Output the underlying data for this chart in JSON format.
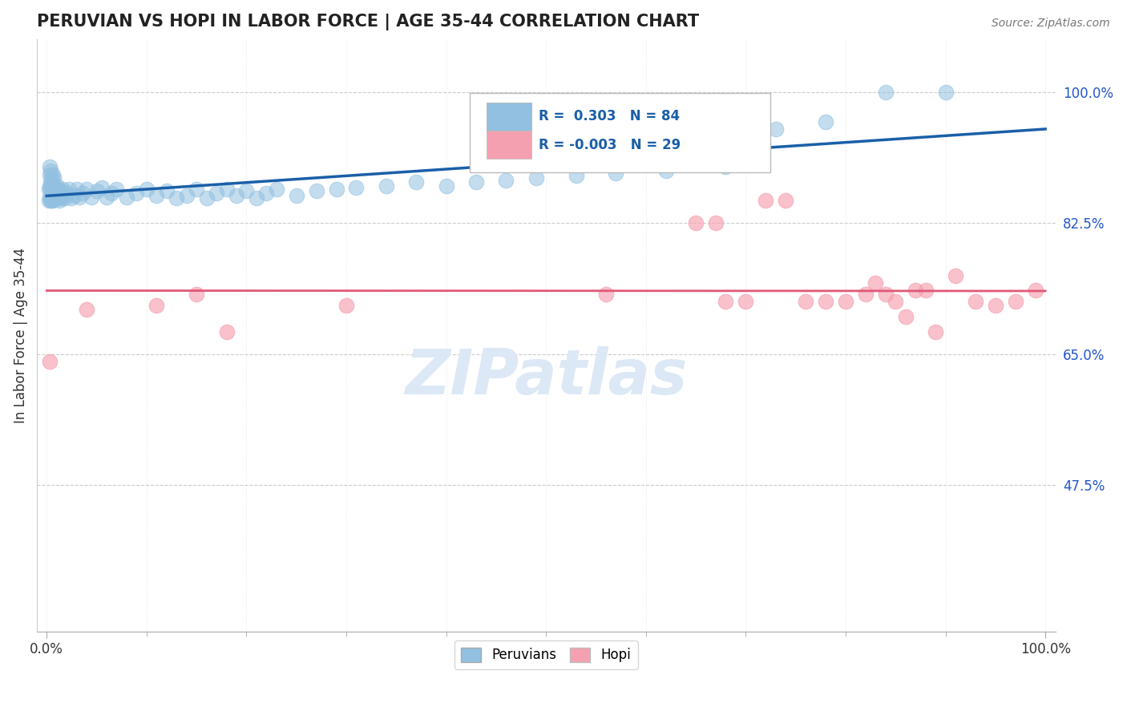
{
  "title": "PERUVIAN VS HOPI IN LABOR FORCE | AGE 35-44 CORRELATION CHART",
  "source": "Source: ZipAtlas.com",
  "ylabel": "In Labor Force | Age 35-44",
  "xlim": [
    -0.01,
    1.01
  ],
  "ylim": [
    0.28,
    1.07
  ],
  "y_ticks_right": [
    1.0,
    0.825,
    0.65,
    0.475
  ],
  "y_tick_labels_right": [
    "100.0%",
    "82.5%",
    "65.0%",
    "47.5%"
  ],
  "blue_R": 0.303,
  "blue_N": 84,
  "pink_R": -0.003,
  "pink_N": 29,
  "blue_color": "#92c0e0",
  "pink_color": "#f5a0b0",
  "blue_line_color": "#1a5fa8",
  "pink_line_color": "#e05878",
  "watermark_color": "#dce8f5",
  "peruvians_x": [
    0.002,
    0.002,
    0.003,
    0.003,
    0.003,
    0.003,
    0.004,
    0.004,
    0.004,
    0.004,
    0.005,
    0.005,
    0.005,
    0.005,
    0.006,
    0.006,
    0.006,
    0.006,
    0.007,
    0.007,
    0.007,
    0.008,
    0.008,
    0.009,
    0.009,
    0.01,
    0.01,
    0.011,
    0.011,
    0.012,
    0.013,
    0.014,
    0.015,
    0.016,
    0.017,
    0.018,
    0.02,
    0.022,
    0.025,
    0.028,
    0.03,
    0.033,
    0.036,
    0.04,
    0.045,
    0.05,
    0.055,
    0.06,
    0.065,
    0.07,
    0.08,
    0.09,
    0.1,
    0.11,
    0.12,
    0.13,
    0.14,
    0.15,
    0.16,
    0.17,
    0.18,
    0.19,
    0.2,
    0.21,
    0.22,
    0.23,
    0.25,
    0.27,
    0.29,
    0.31,
    0.34,
    0.37,
    0.4,
    0.43,
    0.46,
    0.49,
    0.53,
    0.57,
    0.62,
    0.68,
    0.73,
    0.78,
    0.84,
    0.9
  ],
  "peruvians_y": [
    0.855,
    0.87,
    0.86,
    0.875,
    0.89,
    0.9,
    0.855,
    0.87,
    0.88,
    0.895,
    0.855,
    0.86,
    0.875,
    0.885,
    0.855,
    0.865,
    0.878,
    0.89,
    0.86,
    0.87,
    0.885,
    0.862,
    0.875,
    0.858,
    0.872,
    0.86,
    0.875,
    0.858,
    0.87,
    0.862,
    0.855,
    0.868,
    0.858,
    0.87,
    0.862,
    0.858,
    0.865,
    0.87,
    0.858,
    0.862,
    0.87,
    0.86,
    0.865,
    0.87,
    0.86,
    0.868,
    0.872,
    0.86,
    0.865,
    0.87,
    0.86,
    0.865,
    0.87,
    0.862,
    0.868,
    0.858,
    0.862,
    0.87,
    0.858,
    0.865,
    0.87,
    0.862,
    0.868,
    0.858,
    0.865,
    0.87,
    0.862,
    0.868,
    0.87,
    0.872,
    0.875,
    0.88,
    0.875,
    0.88,
    0.882,
    0.885,
    0.888,
    0.892,
    0.895,
    0.9,
    0.95,
    0.96,
    1.0,
    1.0
  ],
  "hopi_x": [
    0.003,
    0.04,
    0.11,
    0.15,
    0.18,
    0.3,
    0.56,
    0.65,
    0.67,
    0.68,
    0.7,
    0.72,
    0.74,
    0.76,
    0.78,
    0.8,
    0.82,
    0.83,
    0.84,
    0.85,
    0.86,
    0.87,
    0.88,
    0.89,
    0.91,
    0.93,
    0.95,
    0.97,
    0.99
  ],
  "hopi_y": [
    0.64,
    0.71,
    0.715,
    0.73,
    0.68,
    0.715,
    0.73,
    0.825,
    0.825,
    0.72,
    0.72,
    0.855,
    0.855,
    0.72,
    0.72,
    0.72,
    0.73,
    0.745,
    0.73,
    0.72,
    0.7,
    0.735,
    0.735,
    0.68,
    0.755,
    0.72,
    0.715,
    0.72,
    0.735
  ],
  "pink_line_y_intercept": 0.726,
  "pink_line_slope": 0.0
}
